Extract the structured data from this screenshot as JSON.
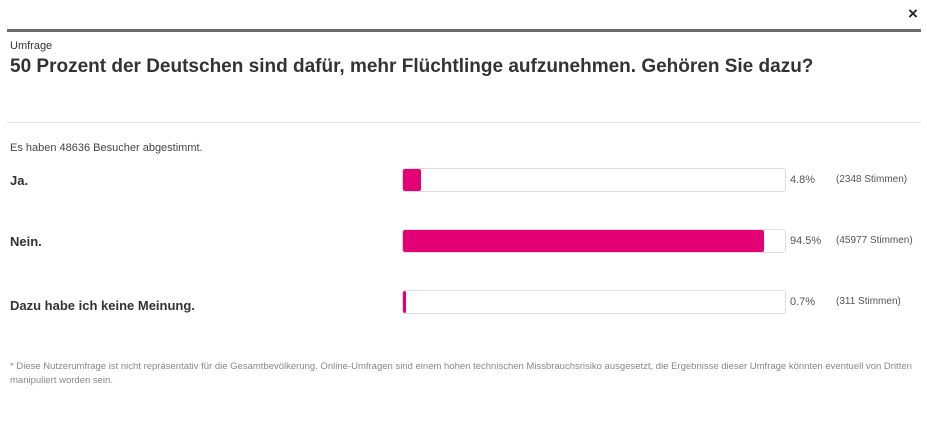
{
  "close_label": "×",
  "kicker": "Umfrage",
  "title": "50 Prozent der Deutschen sind dafür, mehr Flüchtlinge aufzunehmen. Gehören Sie dazu?",
  "voters": "Es haben 48636 Besucher abgestimmt.",
  "accent": "#e20074",
  "options": [
    {
      "label": "Ja.",
      "percent": 4.8,
      "percent_label": "4.8%",
      "votes": "(2348 Stimmen)"
    },
    {
      "label": "Nein.",
      "percent": 94.5,
      "percent_label": "94.5%",
      "votes": "(45977 Stimmen)"
    },
    {
      "label": "Dazu habe ich keine Meinung.",
      "percent": 0.7,
      "percent_label": "0.7%",
      "votes": "(311 Stimmen)"
    }
  ],
  "footnote": "* Diese Nutzerumfrage ist nicht repräsentativ für die Gesamtbevölkerung. Online-Umfragen sind einem hohen technischen Missbrauchsrisiko ausgesetzt, die Ergebnisse dieser Umfrage könnten eventuell von Dritten manipuliert worden sein."
}
